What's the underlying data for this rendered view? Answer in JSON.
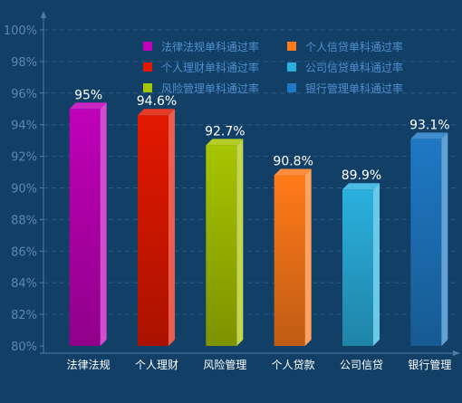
{
  "chart_data": {
    "type": "bar",
    "categories": [
      "法律法规",
      "个人理财",
      "风险管理",
      "个人贷款",
      "公司信贷",
      "银行管理"
    ],
    "values": [
      95,
      94.6,
      92.7,
      90.8,
      89.9,
      93.1
    ],
    "data_labels": [
      "95%",
      "94.6%",
      "92.7%",
      "90.8%",
      "89.9%",
      "93.1%"
    ],
    "series_names": [
      "法律法规单科通过率",
      "个人理财单科通过率",
      "风险管理单科通过率",
      "个人信贷单科通过率",
      "公司信贷单科通过率",
      "银行管理单科通过率"
    ],
    "colors": [
      "#c000b8",
      "#e21800",
      "#a6c400",
      "#ff7a1a",
      "#2ab0de",
      "#1f78c4"
    ],
    "yticks": [
      "80%",
      "82%",
      "84%",
      "86%",
      "88%",
      "90%",
      "92%",
      "94%",
      "96%",
      "98%",
      "100%"
    ],
    "ylim": [
      80,
      100
    ],
    "grid": true,
    "legend_position": "top-center",
    "title": "",
    "xlabel": "",
    "ylabel": ""
  }
}
